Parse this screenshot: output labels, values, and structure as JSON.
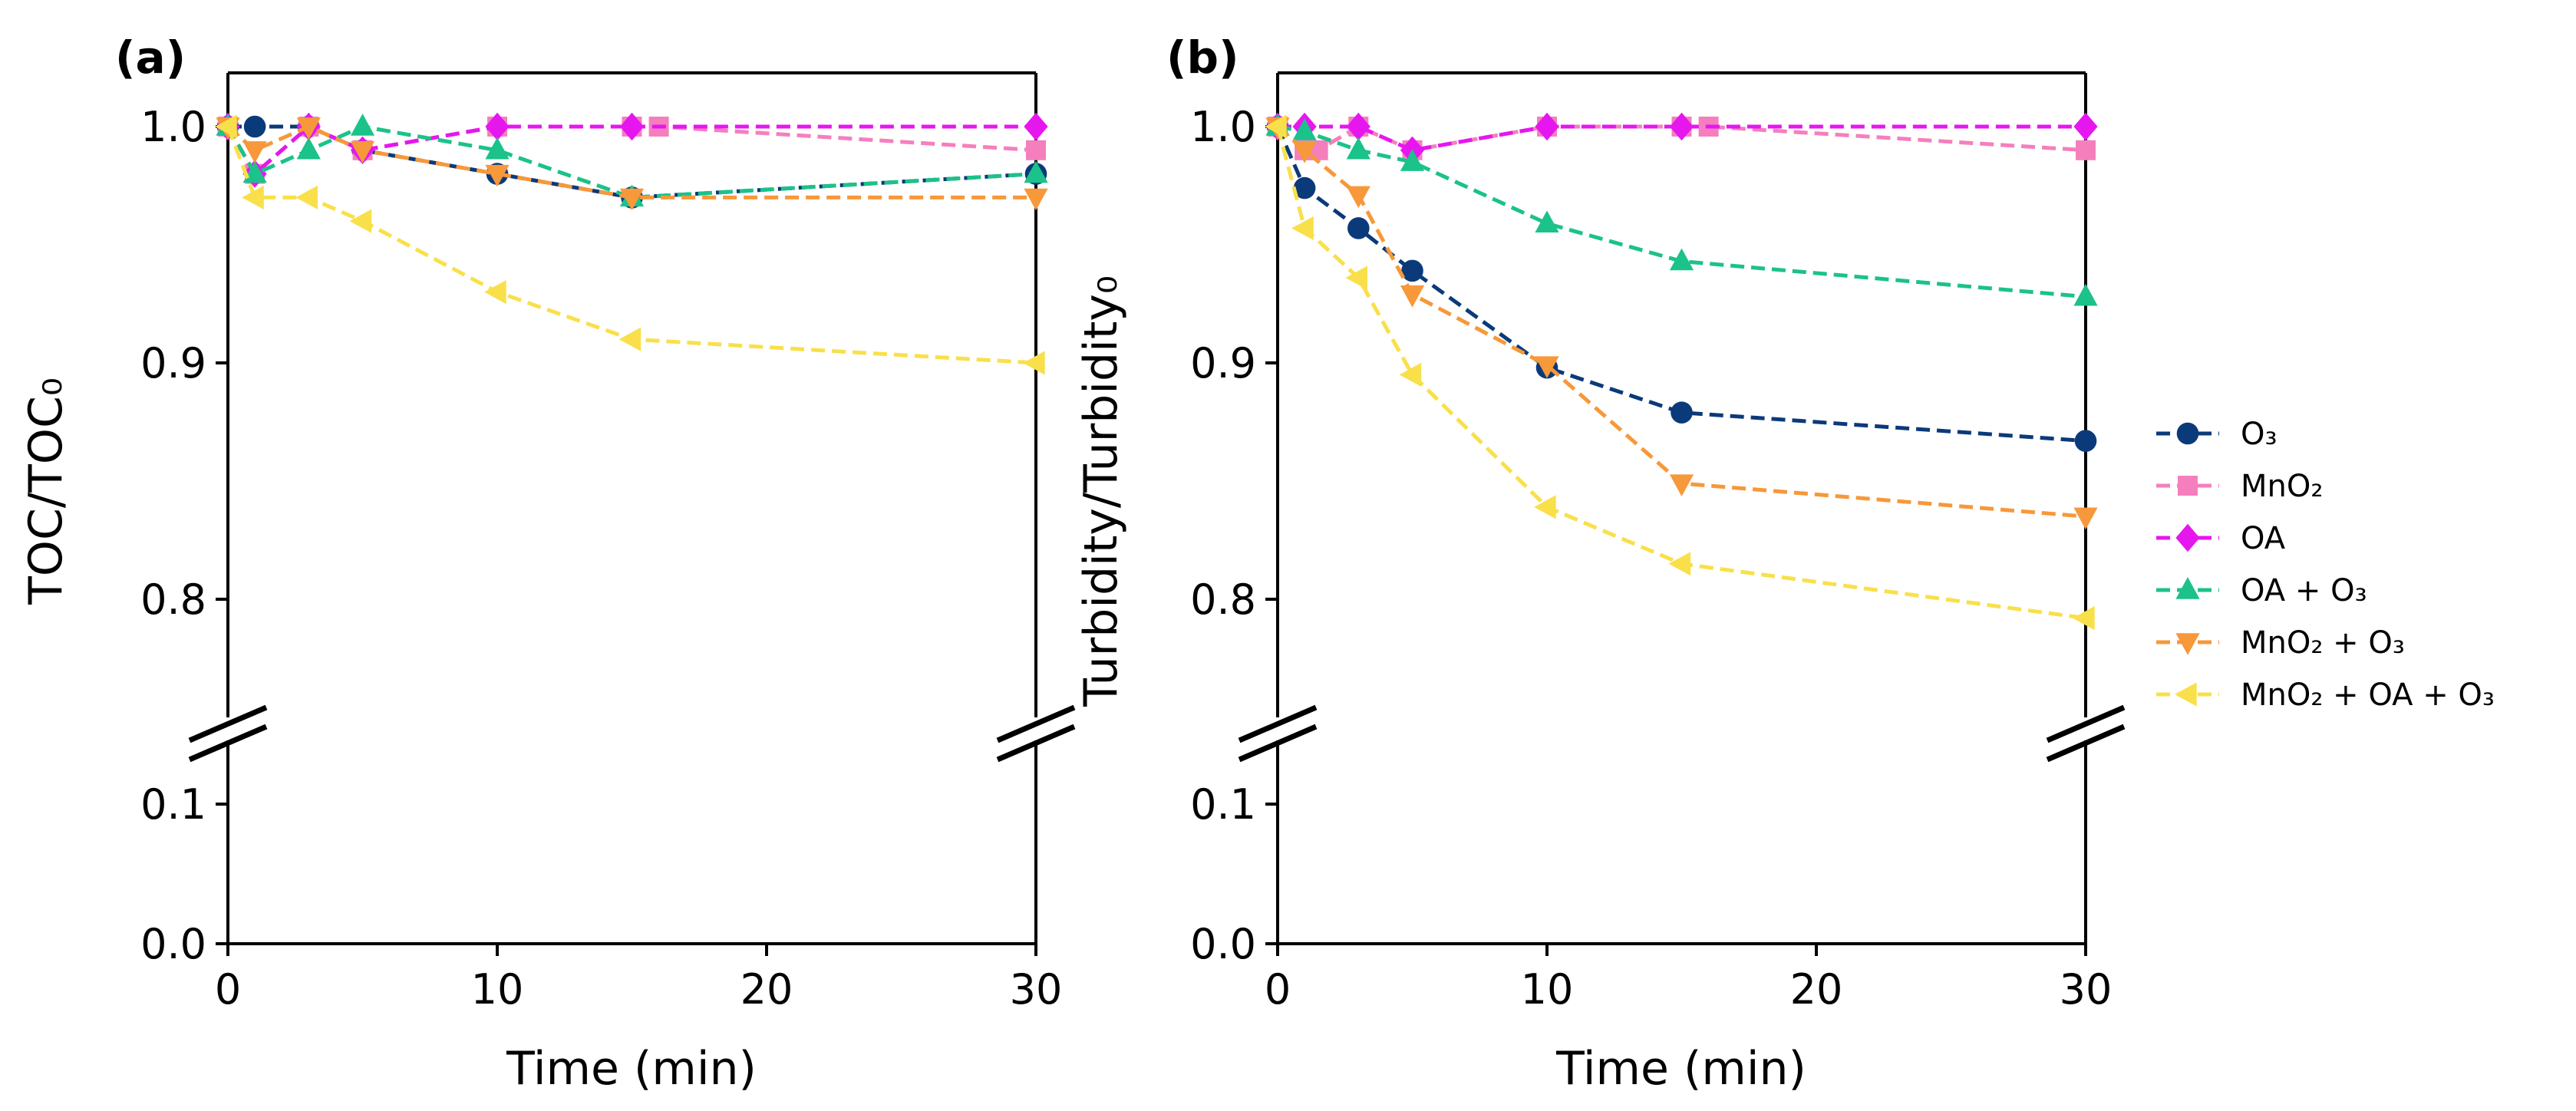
{
  "chart_data": [
    {
      "type": "line",
      "panel_label": "(a)",
      "xlabel": "Time (min)",
      "ylabel": "TOC/TOC₀",
      "xlim": [
        0,
        30
      ],
      "x_ticks": [
        "0",
        "10",
        "20",
        "30"
      ],
      "y_ticks_upper": [
        "0.8",
        "0.9",
        "1.0"
      ],
      "y_ticks_lower": [
        "0.0",
        "0.1"
      ],
      "axis_break": true,
      "series": [
        {
          "name": "O₃",
          "color": "#0b3a7a",
          "marker": "circle",
          "x": [
            0,
            1,
            3,
            5,
            10,
            15,
            30
          ],
          "y": [
            1.0,
            1.0,
            1.0,
            0.99,
            0.98,
            0.97,
            0.98
          ]
        },
        {
          "name": "MnO₂",
          "color": "#f57fbd",
          "marker": "square",
          "x": [
            0,
            1,
            3,
            5,
            10,
            15,
            16,
            30
          ],
          "y": [
            1.0,
            0.98,
            1.0,
            0.99,
            1.0,
            1.0,
            1.0,
            0.99
          ]
        },
        {
          "name": "OA",
          "color": "#e617ee",
          "marker": "diamond",
          "x": [
            0,
            1,
            3,
            5,
            10,
            15,
            30
          ],
          "y": [
            1.0,
            0.98,
            1.0,
            0.99,
            1.0,
            1.0,
            1.0
          ]
        },
        {
          "name": "OA + O₃",
          "color": "#1bc28a",
          "marker": "triangle-up",
          "x": [
            0,
            1,
            3,
            5,
            10,
            15,
            30
          ],
          "y": [
            1.0,
            0.98,
            0.99,
            1.0,
            0.99,
            0.97,
            0.98
          ]
        },
        {
          "name": "MnO₂ + O₃",
          "color": "#f7983a",
          "marker": "triangle-down",
          "x": [
            0,
            1,
            3,
            5,
            10,
            15,
            30
          ],
          "y": [
            1.0,
            0.99,
            1.0,
            0.99,
            0.98,
            0.97,
            0.97
          ]
        },
        {
          "name": "MnO₂ + OA + O₃",
          "color": "#f9e04a",
          "marker": "triangle-left",
          "x": [
            0,
            1,
            3,
            5,
            10,
            15,
            30
          ],
          "y": [
            1.0,
            0.97,
            0.97,
            0.96,
            0.93,
            0.91,
            0.9
          ]
        }
      ]
    },
    {
      "type": "line",
      "panel_label": "(b)",
      "xlabel": "Time (min)",
      "ylabel": "Turbidity/Turbidity₀",
      "xlim": [
        0,
        30
      ],
      "x_ticks": [
        "0",
        "10",
        "20",
        "30"
      ],
      "y_ticks_upper": [
        "0.8",
        "0.9",
        "1.0"
      ],
      "y_ticks_lower": [
        "0.0",
        "0.1"
      ],
      "axis_break": true,
      "series": [
        {
          "name": "O₃",
          "color": "#0b3a7a",
          "marker": "circle",
          "x": [
            0,
            1,
            3,
            5,
            10,
            15,
            30
          ],
          "y": [
            1.0,
            0.974,
            0.957,
            0.939,
            0.898,
            0.879,
            0.867
          ]
        },
        {
          "name": "MnO₂",
          "color": "#f57fbd",
          "marker": "square",
          "x": [
            0,
            1,
            1.5,
            3,
            5,
            10,
            15,
            16,
            30
          ],
          "y": [
            1.0,
            0.99,
            0.99,
            1.0,
            0.99,
            1.0,
            1.0,
            1.0,
            0.99
          ]
        },
        {
          "name": "OA",
          "color": "#e617ee",
          "marker": "diamond",
          "x": [
            0,
            1,
            3,
            5,
            10,
            15,
            30
          ],
          "y": [
            1.0,
            1.0,
            1.0,
            0.99,
            1.0,
            1.0,
            1.0
          ]
        },
        {
          "name": "OA + O₃",
          "color": "#1bc28a",
          "marker": "triangle-up",
          "x": [
            0,
            1,
            3,
            5,
            10,
            15,
            30
          ],
          "y": [
            1.0,
            0.998,
            0.99,
            0.985,
            0.959,
            0.943,
            0.928
          ]
        },
        {
          "name": "MnO₂ + O₃",
          "color": "#f7983a",
          "marker": "triangle-down",
          "x": [
            0,
            1,
            3,
            5,
            10,
            15,
            30
          ],
          "y": [
            1.0,
            0.99,
            0.971,
            0.929,
            0.899,
            0.849,
            0.835
          ]
        },
        {
          "name": "MnO₂ + OA + O₃",
          "color": "#f9e04a",
          "marker": "triangle-left",
          "x": [
            0,
            1,
            3,
            5,
            10,
            15,
            30
          ],
          "y": [
            1.0,
            0.957,
            0.936,
            0.895,
            0.839,
            0.815,
            0.792
          ]
        }
      ]
    }
  ],
  "legend": {
    "placement": "right",
    "entries": [
      "O₃",
      "MnO₂",
      "OA",
      "OA + O₃",
      "MnO₂ + O₃",
      "MnO₂ + OA + O₃"
    ]
  }
}
